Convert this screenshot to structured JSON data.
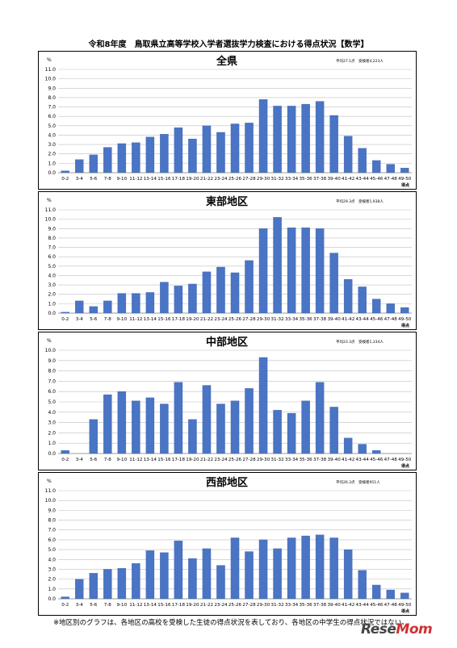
{
  "page": {
    "title": "令和8年度　鳥取県立高等学校入学者選抜学力検査における得点状況【数学】",
    "footnote": "※地区別のグラフは、各地区の高校を受検した生徒の得点状況を表しており、各地区の中学生の得点状況ではない。",
    "logo_text": "ReseMom"
  },
  "colors": {
    "bar": "#4a74c4",
    "bar_edge": "#3a5ea5",
    "grid": "#bfbfbf"
  },
  "chart_data": [
    {
      "type": "bar",
      "title": "全県",
      "stats": "平均27.1点　受検者4,223人",
      "ylabel": "%",
      "xlabel": "得点",
      "ylim": [
        0,
        11
      ],
      "yticks": [
        "0.0",
        "1.0",
        "2.0",
        "3.0",
        "4.0",
        "5.0",
        "6.0",
        "7.0",
        "8.0",
        "9.0",
        "10.0",
        "11.0"
      ],
      "categories": [
        "0-2",
        "3-4",
        "5-6",
        "7-8",
        "9-10",
        "11-12",
        "13-14",
        "15-16",
        "17-18",
        "19-20",
        "21-22",
        "23-24",
        "25-26",
        "27-28",
        "29-30",
        "31-32",
        "33-34",
        "35-36",
        "37-38",
        "39-40",
        "41-42",
        "43-44",
        "45-46",
        "47-48",
        "49-50"
      ],
      "values": [
        0.2,
        1.4,
        1.9,
        2.7,
        3.1,
        3.2,
        3.8,
        4.1,
        4.8,
        3.6,
        5.0,
        4.3,
        5.2,
        5.3,
        7.8,
        7.1,
        7.1,
        7.3,
        7.6,
        6.1,
        3.9,
        2.6,
        1.3,
        0.9,
        0.5
      ]
    },
    {
      "type": "bar",
      "title": "東部地区",
      "stats": "平均29.3点　受検者1,938人",
      "ylabel": "%",
      "xlabel": "得点",
      "ylim": [
        0,
        11
      ],
      "yticks": [
        "0.0",
        "1.0",
        "2.0",
        "3.0",
        "4.0",
        "5.0",
        "6.0",
        "7.0",
        "8.0",
        "9.0",
        "10.0",
        "11.0"
      ],
      "categories": [
        "0-2",
        "3-4",
        "5-6",
        "7-8",
        "9-10",
        "11-12",
        "13-14",
        "15-16",
        "17-18",
        "19-20",
        "21-22",
        "23-24",
        "25-26",
        "27-28",
        "29-30",
        "31-32",
        "33-34",
        "35-36",
        "37-38",
        "39-40",
        "41-42",
        "43-44",
        "45-46",
        "47-48",
        "49-50"
      ],
      "values": [
        0.1,
        1.3,
        0.7,
        1.3,
        2.1,
        2.1,
        2.2,
        3.3,
        2.9,
        3.1,
        4.4,
        4.9,
        4.3,
        5.6,
        9.0,
        10.2,
        9.1,
        9.1,
        9.0,
        6.4,
        3.6,
        2.8,
        1.5,
        1.0,
        0.6
      ]
    },
    {
      "type": "bar",
      "title": "中部地区",
      "stats": "平均23.3点　受検者1,334人",
      "ylabel": "%",
      "xlabel": "得点",
      "ylim": [
        0,
        10
      ],
      "yticks": [
        "0.0",
        "1.0",
        "2.0",
        "3.0",
        "4.0",
        "5.0",
        "6.0",
        "7.0",
        "8.0",
        "9.0",
        "10.0"
      ],
      "categories": [
        "0-2",
        "3-4",
        "5-6",
        "7-8",
        "9-10",
        "11-12",
        "13-14",
        "15-16",
        "17-18",
        "19-20",
        "21-22",
        "23-24",
        "25-26",
        "27-28",
        "29-30",
        "31-32",
        "33-34",
        "35-36",
        "37-38",
        "39-40",
        "41-42",
        "43-44",
        "45-46",
        "47-48",
        "49-50"
      ],
      "values": [
        0.3,
        0.0,
        3.3,
        5.7,
        6.0,
        5.1,
        5.4,
        4.8,
        6.9,
        3.3,
        6.6,
        4.8,
        5.1,
        6.3,
        9.3,
        4.2,
        3.9,
        5.1,
        6.9,
        4.5,
        1.5,
        0.9,
        0.3,
        0.0,
        0.0
      ]
    },
    {
      "type": "bar",
      "title": "西部地区",
      "stats": "平均26.3点　受検者951人",
      "ylabel": "%",
      "xlabel": "得点",
      "ylim": [
        0,
        11
      ],
      "yticks": [
        "0.0",
        "1.0",
        "2.0",
        "3.0",
        "4.0",
        "5.0",
        "6.0",
        "7.0",
        "8.0",
        "9.0",
        "10.0",
        "11.0"
      ],
      "categories": [
        "0-2",
        "3-4",
        "5-6",
        "7-8",
        "9-10",
        "11-12",
        "13-14",
        "15-16",
        "17-18",
        "19-20",
        "21-22",
        "23-24",
        "25-26",
        "27-28",
        "29-30",
        "31-32",
        "33-34",
        "35-36",
        "37-38",
        "39-40",
        "41-42",
        "43-44",
        "45-46",
        "47-48",
        "49-50"
      ],
      "values": [
        0.2,
        2.0,
        2.6,
        3.0,
        3.1,
        3.6,
        4.9,
        4.7,
        5.9,
        4.1,
        5.1,
        3.4,
        6.2,
        4.8,
        6.0,
        5.1,
        6.2,
        6.4,
        6.5,
        6.2,
        5.0,
        2.9,
        1.4,
        0.9,
        0.6
      ]
    }
  ]
}
